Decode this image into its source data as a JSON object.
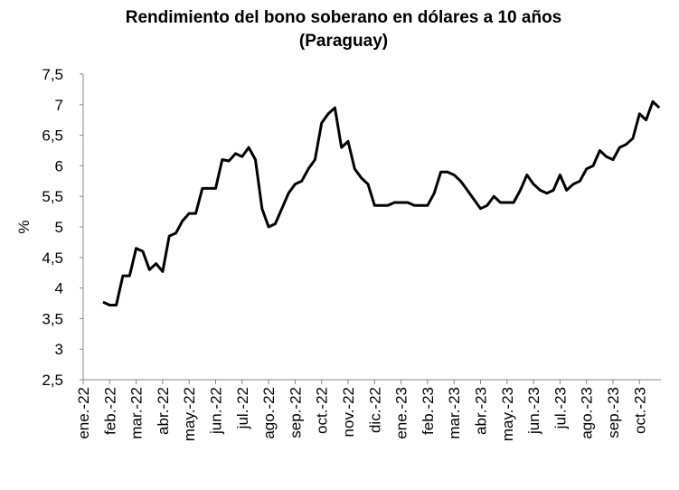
{
  "chart_data": {
    "type": "line",
    "title": [
      "Rendimiento del bono soberano en dólares a 10 años",
      "(Paraguay)"
    ],
    "y_label": "%",
    "categories": [
      "ene.-22",
      null,
      null,
      null,
      "feb.-22",
      null,
      null,
      null,
      "mar.-22",
      null,
      null,
      null,
      "abr.-22",
      null,
      null,
      null,
      "may.-22",
      null,
      null,
      null,
      "jun.-22",
      null,
      null,
      null,
      "jul.-22",
      null,
      null,
      null,
      "ago.-22",
      null,
      null,
      null,
      "sep.-22",
      null,
      null,
      null,
      "oct.-22",
      null,
      null,
      null,
      "nov.-22",
      null,
      null,
      null,
      "dic.-22",
      null,
      null,
      null,
      "ene.-23",
      null,
      null,
      null,
      "feb.-23",
      null,
      null,
      null,
      "mar.-23",
      null,
      null,
      null,
      "abr.-23",
      null,
      null,
      null,
      "may.-23",
      null,
      null,
      null,
      "jun.-23",
      null,
      null,
      null,
      "jul.-23",
      null,
      null,
      null,
      "ago.-23",
      null,
      null,
      null,
      "sep.-23",
      null,
      null,
      null,
      "oct.-23",
      null,
      null,
      null
    ],
    "series": [
      {
        "name": null,
        "color": "#000000",
        "values": [
          null,
          null,
          null,
          3.77,
          3.72,
          3.72,
          4.2,
          4.2,
          4.65,
          4.6,
          4.3,
          4.4,
          4.27,
          4.85,
          4.9,
          5.1,
          5.22,
          5.22,
          5.63,
          5.63,
          5.63,
          6.1,
          6.08,
          6.2,
          6.15,
          6.3,
          6.1,
          5.3,
          5.0,
          5.05,
          5.3,
          5.55,
          5.7,
          5.75,
          5.95,
          6.1,
          6.7,
          6.85,
          6.95,
          6.3,
          6.4,
          5.95,
          5.8,
          5.7,
          5.35,
          5.35,
          5.35,
          5.4,
          5.4,
          5.4,
          5.35,
          5.35,
          5.35,
          5.55,
          5.9,
          5.9,
          5.85,
          5.75,
          5.6,
          5.45,
          5.3,
          5.35,
          5.5,
          5.4,
          5.4,
          5.4,
          5.6,
          5.85,
          5.7,
          5.6,
          5.55,
          5.6,
          5.85,
          5.6,
          5.7,
          5.75,
          5.95,
          6.0,
          6.25,
          6.15,
          6.1,
          6.3,
          6.35,
          6.45,
          6.85,
          6.75,
          7.05,
          6.95
        ]
      }
    ],
    "ylim": [
      2.5,
      7.5
    ],
    "yticks": [
      {
        "value": 2.5,
        "label": "2,5"
      },
      3,
      {
        "value": 3.5,
        "label": "3,5"
      },
      4,
      {
        "value": 4.5,
        "label": "4,5"
      },
      5,
      {
        "value": 5.5,
        "label": "5,5"
      },
      6,
      {
        "value": 6.5,
        "label": "6,5"
      },
      7,
      {
        "value": 7.5,
        "label": "7,5"
      }
    ],
    "grid": false
  }
}
